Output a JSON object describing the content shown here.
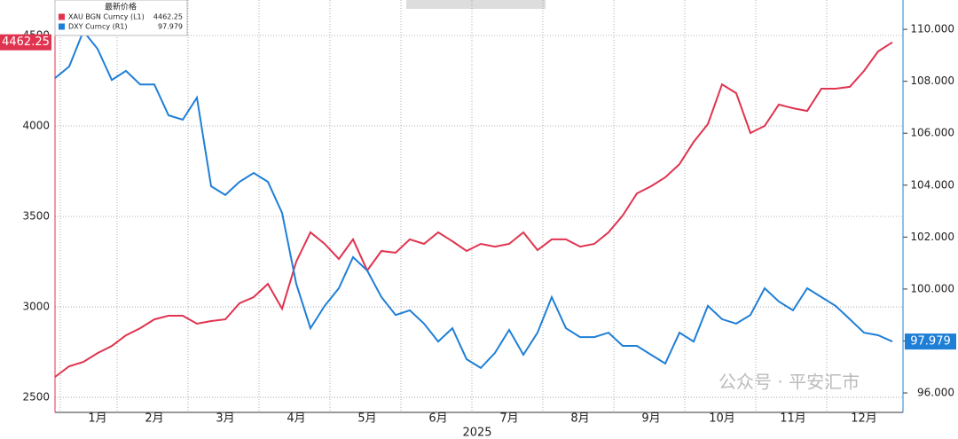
{
  "chart_data": {
    "type": "line",
    "legend_title": "最新价格",
    "xlabel": "2025",
    "annotation": "公众号 · 平安汇市",
    "categories": [
      null,
      null,
      null,
      "1月",
      null,
      null,
      null,
      "2月",
      null,
      null,
      null,
      null,
      "3月",
      null,
      null,
      null,
      null,
      "4月",
      null,
      null,
      null,
      null,
      "5月",
      null,
      null,
      null,
      null,
      "6月",
      null,
      null,
      null,
      null,
      "7月",
      null,
      null,
      null,
      null,
      "8月",
      null,
      null,
      null,
      null,
      "9月",
      null,
      null,
      null,
      null,
      "10月",
      null,
      null,
      null,
      null,
      "11月",
      null,
      null,
      null,
      null,
      "12月",
      null,
      null
    ],
    "ylim": [
      2417,
      4696
    ],
    "yticks": [
      2500,
      3000,
      3500,
      4000,
      4500
    ],
    "y2lim": [
      95.25,
      111.13
    ],
    "y2ticks": [
      {
        "value": 96,
        "label": "96.000"
      },
      {
        "value": 98,
        "label": "98.000"
      },
      {
        "value": 100,
        "label": "100.000"
      },
      {
        "value": 102,
        "label": "102.000"
      },
      {
        "value": 104,
        "label": "104.000"
      },
      {
        "value": 106,
        "label": "106.000"
      },
      {
        "value": 108,
        "label": "108.000"
      },
      {
        "value": 110,
        "label": "110.000"
      }
    ],
    "grid": true,
    "legend": "upper left",
    "series": [
      {
        "name": "XAU BGN Curncy (L1)",
        "color": "#e0334f",
        "values": [
          2613,
          2672,
          2696,
          2745,
          2784,
          2843,
          2882,
          2931,
          2951,
          2951,
          2907,
          2922,
          2931,
          3020,
          3054,
          3127,
          2990,
          3250,
          3412,
          3348,
          3265,
          3373,
          3201,
          3309,
          3299,
          3373,
          3348,
          3412,
          3363,
          3309,
          3348,
          3333,
          3348,
          3412,
          3314,
          3373,
          3373,
          3333,
          3348,
          3412,
          3505,
          3627,
          3667,
          3716,
          3789,
          3912,
          4010,
          4230,
          4181,
          3961,
          4000,
          4118,
          4098,
          4083,
          4206,
          4206,
          4216,
          4304,
          4412,
          4462.25
        ],
        "value_labels": [
          null,
          null,
          null,
          null,
          null,
          null,
          null,
          null,
          null,
          null,
          null,
          null,
          null,
          null,
          null,
          null,
          null,
          null,
          null,
          null,
          null,
          null,
          null,
          null,
          null,
          null,
          null,
          null,
          null,
          null,
          null,
          null,
          null,
          null,
          null,
          null,
          null,
          null,
          null,
          null,
          null,
          null,
          null,
          null,
          null,
          null,
          null,
          null,
          null,
          null,
          null,
          null,
          null,
          null,
          null,
          null,
          null,
          null,
          null,
          "4462.25"
        ]
      },
      {
        "name": "DXY Curncy (R1)",
        "color": "#1f7fd6",
        "axis": "y2",
        "values": [
          108.12,
          108.57,
          109.93,
          109.25,
          108.05,
          108.4,
          107.88,
          107.88,
          106.69,
          106.52,
          107.37,
          103.96,
          103.62,
          104.13,
          104.47,
          104.13,
          102.93,
          100.2,
          98.49,
          99.35,
          100.03,
          101.23,
          100.71,
          99.69,
          99.0,
          99.18,
          98.67,
          97.98,
          98.49,
          97.3,
          96.96,
          97.54,
          98.43,
          97.47,
          98.32,
          99.69,
          98.49,
          98.15,
          98.15,
          98.32,
          97.81,
          97.81,
          97.47,
          97.13,
          98.32,
          97.98,
          99.35,
          98.84,
          98.67,
          99.0,
          100.03,
          99.52,
          99.18,
          100.03,
          99.69,
          99.35,
          98.84,
          98.32,
          98.22,
          97.979
        ],
        "value_labels": [
          null,
          null,
          null,
          null,
          null,
          null,
          null,
          null,
          null,
          null,
          null,
          null,
          null,
          null,
          null,
          null,
          null,
          null,
          null,
          null,
          null,
          null,
          null,
          null,
          null,
          null,
          null,
          null,
          null,
          null,
          null,
          null,
          null,
          null,
          null,
          null,
          null,
          null,
          null,
          null,
          null,
          null,
          null,
          null,
          null,
          null,
          null,
          null,
          null,
          null,
          null,
          null,
          null,
          null,
          null,
          null,
          null,
          null,
          null,
          "97.979"
        ]
      }
    ]
  }
}
